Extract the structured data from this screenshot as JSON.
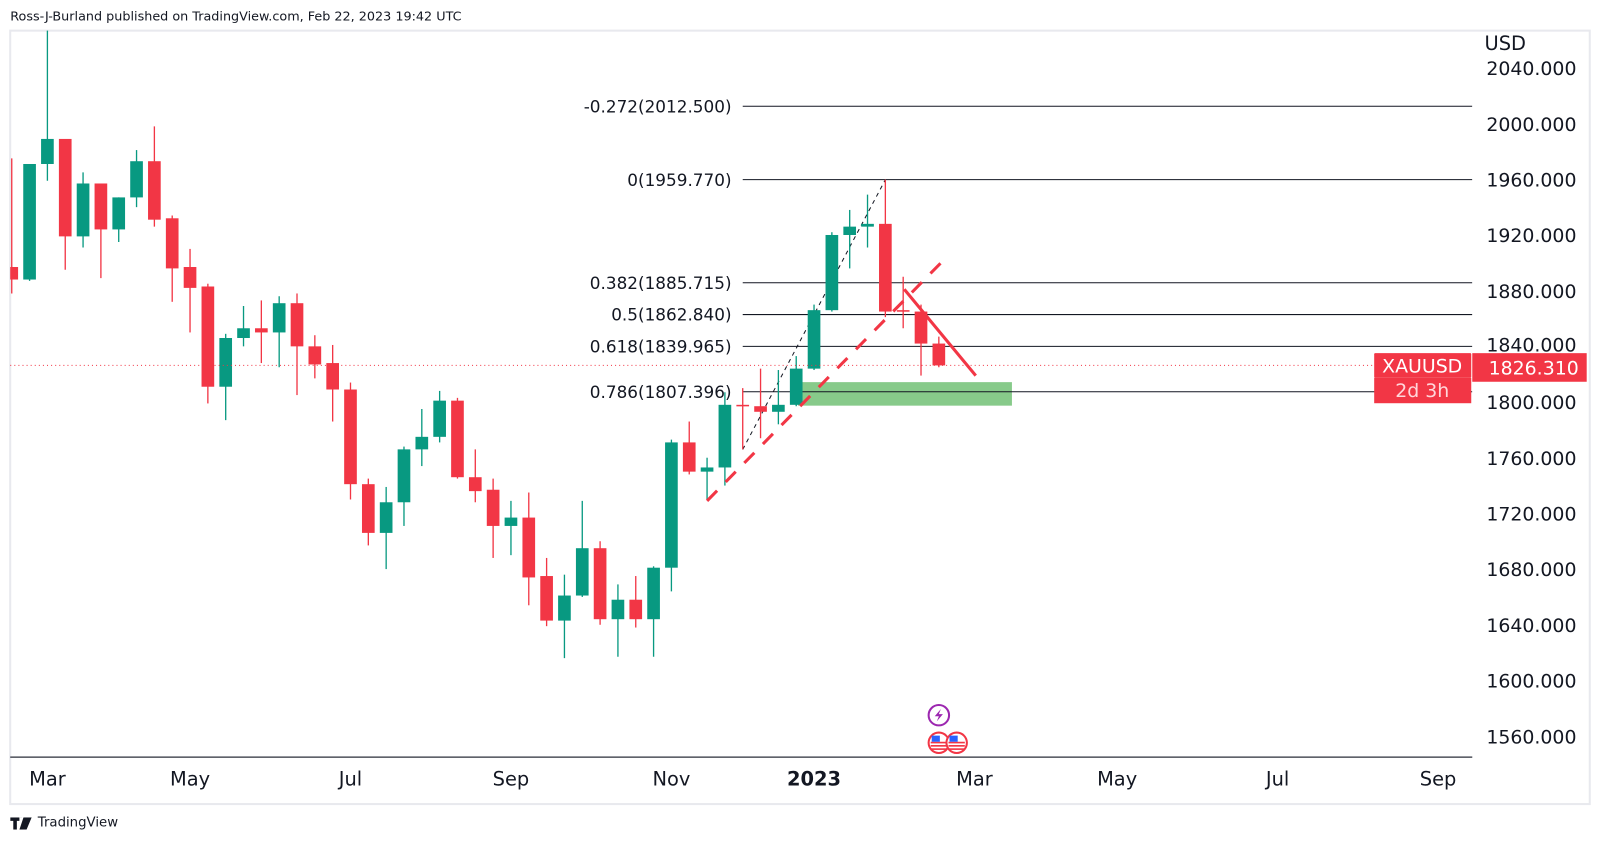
{
  "header": {
    "published": "Ross-J-Burland published on TradingView.com, Feb 22, 2023 19:42 UTC"
  },
  "footer": {
    "brand": "TradingView",
    "logo_icon": "tradingview-logo-icon"
  },
  "colors": {
    "up": "#089981",
    "down": "#F23645",
    "zone": "#81C784",
    "fib": "#131722",
    "trend": "#F23645"
  },
  "chart_data": {
    "type": "candlestick",
    "symbol": "XAUUSD",
    "interval": "weekly",
    "currency": "USD",
    "last_price_label": "1826.310",
    "countdown": "2d 3h",
    "ylim": [
      1540,
      2075
    ],
    "y_ticks": [
      "2040.000",
      "2000.000",
      "1960.000",
      "1920.000",
      "1880.000",
      "1840.000",
      "1800.000",
      "1760.000",
      "1720.000",
      "1680.000",
      "1640.000",
      "1600.000",
      "1560.000"
    ],
    "x_ticks": [
      {
        "label": "Mar",
        "index": 2
      },
      {
        "label": "May",
        "index": 10
      },
      {
        "label": "Jul",
        "index": 19
      },
      {
        "label": "Sep",
        "index": 28
      },
      {
        "label": "Nov",
        "index": 37
      },
      {
        "label": "2023",
        "index": 45,
        "bold": true
      },
      {
        "label": "Mar",
        "index": 54
      },
      {
        "label": "May",
        "index": 62
      },
      {
        "label": "Jul",
        "index": 71
      },
      {
        "label": "Sep",
        "index": 80
      }
    ],
    "candles": [
      [
        1897,
        1975,
        1878,
        1888
      ],
      [
        1888,
        1971,
        1887,
        1971
      ],
      [
        1971,
        2067,
        1959,
        1989
      ],
      [
        1989,
        1989,
        1895,
        1919
      ],
      [
        1919,
        1965,
        1911,
        1957
      ],
      [
        1957,
        1957,
        1889,
        1924
      ],
      [
        1924,
        1947,
        1915,
        1947
      ],
      [
        1947,
        1981,
        1940,
        1973
      ],
      [
        1973,
        1998,
        1926,
        1931
      ],
      [
        1932,
        1934,
        1872,
        1896
      ],
      [
        1897,
        1910,
        1850,
        1882
      ],
      [
        1883,
        1885,
        1799,
        1811
      ],
      [
        1811,
        1849,
        1787,
        1846
      ],
      [
        1846,
        1869,
        1840,
        1853
      ],
      [
        1853,
        1873,
        1828,
        1850
      ],
      [
        1850,
        1876,
        1825,
        1871
      ],
      [
        1871,
        1878,
        1805,
        1840
      ],
      [
        1840,
        1848,
        1817,
        1827
      ],
      [
        1828,
        1841,
        1786,
        1809
      ],
      [
        1809,
        1814,
        1730,
        1741
      ],
      [
        1741,
        1745,
        1697,
        1706
      ],
      [
        1706,
        1739,
        1680,
        1728
      ],
      [
        1728,
        1768,
        1711,
        1766
      ],
      [
        1766,
        1795,
        1754,
        1775
      ],
      [
        1775,
        1808,
        1771,
        1801
      ],
      [
        1801,
        1803,
        1745,
        1746
      ],
      [
        1746,
        1766,
        1728,
        1736
      ],
      [
        1737,
        1745,
        1688,
        1711
      ],
      [
        1711,
        1729,
        1690,
        1717
      ],
      [
        1717,
        1735,
        1654,
        1674
      ],
      [
        1675,
        1688,
        1639,
        1643
      ],
      [
        1643,
        1676,
        1616,
        1661
      ],
      [
        1661,
        1729,
        1660,
        1695
      ],
      [
        1695,
        1700,
        1640,
        1644
      ],
      [
        1644,
        1669,
        1617,
        1658
      ],
      [
        1658,
        1675,
        1638,
        1644
      ],
      [
        1644,
        1682,
        1617,
        1681
      ],
      [
        1681,
        1773,
        1664,
        1771
      ],
      [
        1771,
        1786,
        1748,
        1750
      ],
      [
        1750,
        1760,
        1730,
        1753
      ],
      [
        1753,
        1807,
        1740,
        1798
      ],
      [
        1798,
        1810,
        1766,
        1797
      ],
      [
        1797,
        1824,
        1774,
        1793
      ],
      [
        1793,
        1823,
        1784,
        1798
      ],
      [
        1798,
        1833,
        1797,
        1824
      ],
      [
        1824,
        1870,
        1823,
        1866
      ],
      [
        1866,
        1922,
        1865,
        1920
      ],
      [
        1920,
        1938,
        1896,
        1926
      ],
      [
        1926,
        1949,
        1911,
        1928
      ],
      [
        1928,
        1959.77,
        1861,
        1865
      ],
      [
        1866,
        1890,
        1853,
        1865
      ],
      [
        1865,
        1870,
        1819,
        1842
      ],
      [
        1842,
        1847,
        1825,
        1826.31
      ]
    ],
    "fibonacci": {
      "from": {
        "index": 41,
        "price": 1765.91
      },
      "to": {
        "index": 49,
        "price": 1959.77
      },
      "levels": [
        {
          "label": "-0.272(2012.500)",
          "price": 2012.5
        },
        {
          "label": "0(1959.770)",
          "price": 1959.77
        },
        {
          "label": "0.382(1885.715)",
          "price": 1885.715
        },
        {
          "label": "0.5(1862.840)",
          "price": 1862.84
        },
        {
          "label": "0.618(1839.965)",
          "price": 1839.965
        },
        {
          "label": "0.786(1807.396)",
          "price": 1807.396
        }
      ]
    },
    "zone": {
      "from_index": 44.1,
      "to_index": 56.1,
      "top": 1814.3,
      "bottom": 1797.4
    },
    "trendlines": [
      {
        "style": "dashed",
        "from": {
          "index": 39,
          "price": 1729
        },
        "to": {
          "index": 52.5,
          "price": 1905
        }
      },
      {
        "style": "solid",
        "from": {
          "index": 50.06,
          "price": 1881
        },
        "to": {
          "index": 54.07,
          "price": 1819
        }
      }
    ],
    "events": [
      {
        "icon": "lightning-icon",
        "index": 52,
        "row": 0
      },
      {
        "icon": "us-flag-icon",
        "index": 52,
        "row": 1
      },
      {
        "icon": "us-flag-icon",
        "index": 53,
        "row": 1
      }
    ]
  }
}
